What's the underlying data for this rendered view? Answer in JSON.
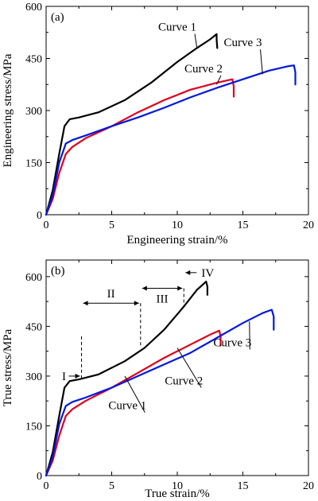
{
  "chart_data": [
    {
      "panel_label": "(a)",
      "type": "line",
      "xlabel": "Engineering strain/%",
      "ylabel": "Engineering stress/MPa",
      "xlim": [
        0,
        20
      ],
      "ylim": [
        0,
        600
      ],
      "xticks": [
        0,
        5,
        10,
        15,
        20
      ],
      "yticks": [
        0,
        150,
        300,
        450,
        600
      ],
      "series": [
        {
          "name": "Curve 1",
          "color": "#000000",
          "points": [
            [
              0,
              0
            ],
            [
              0.5,
              70
            ],
            [
              1.0,
              175
            ],
            [
              1.4,
              255
            ],
            [
              1.8,
              275
            ],
            [
              2.5,
              280
            ],
            [
              4,
              295
            ],
            [
              6,
              330
            ],
            [
              8,
              380
            ],
            [
              10,
              440
            ],
            [
              11.5,
              480
            ],
            [
              12.5,
              505
            ],
            [
              13.0,
              520
            ],
            [
              13.0,
              505
            ],
            [
              13.05,
              480
            ]
          ]
        },
        {
          "name": "Curve 2",
          "color": "#e0001a",
          "points": [
            [
              0,
              0
            ],
            [
              0.5,
              45
            ],
            [
              1.0,
              120
            ],
            [
              1.5,
              175
            ],
            [
              2.0,
              195
            ],
            [
              3,
              220
            ],
            [
              5,
              255
            ],
            [
              7,
              295
            ],
            [
              9,
              330
            ],
            [
              11,
              360
            ],
            [
              13,
              380
            ],
            [
              14.2,
              390
            ],
            [
              14.3,
              370
            ],
            [
              14.3,
              340
            ]
          ]
        },
        {
          "name": "Curve 3",
          "color": "#0018e0",
          "points": [
            [
              0,
              0
            ],
            [
              0.5,
              55
            ],
            [
              1.0,
              150
            ],
            [
              1.5,
              205
            ],
            [
              2.0,
              215
            ],
            [
              3,
              228
            ],
            [
              5,
              255
            ],
            [
              7,
              280
            ],
            [
              9,
              308
            ],
            [
              11,
              338
            ],
            [
              13,
              365
            ],
            [
              15,
              390
            ],
            [
              17,
              415
            ],
            [
              18.5,
              428
            ],
            [
              18.9,
              430
            ],
            [
              19.0,
              410
            ],
            [
              19.0,
              375
            ]
          ]
        }
      ],
      "annotations": [
        {
          "text": "Curve 1",
          "x": 10.0,
          "y": 530
        },
        {
          "text": "Curve 2",
          "x": 12.0,
          "y": 410
        },
        {
          "text": "Curve 3",
          "x": 15.0,
          "y": 485
        }
      ]
    },
    {
      "panel_label": "(b)",
      "type": "line",
      "xlabel": "True strain/%",
      "ylabel": "True stress/MPa",
      "xlim": [
        0,
        20
      ],
      "ylim": [
        0,
        650
      ],
      "xticks": [
        0,
        5,
        10,
        15,
        20
      ],
      "yticks": [
        0,
        150,
        300,
        450,
        600
      ],
      "series": [
        {
          "name": "Curve 1",
          "color": "#000000",
          "points": [
            [
              0,
              0
            ],
            [
              0.5,
              70
            ],
            [
              1.0,
              180
            ],
            [
              1.4,
              265
            ],
            [
              1.8,
              285
            ],
            [
              2.5,
              290
            ],
            [
              4,
              305
            ],
            [
              6,
              345
            ],
            [
              7.5,
              385
            ],
            [
              9,
              440
            ],
            [
              10.5,
              510
            ],
            [
              11.5,
              560
            ],
            [
              12.2,
              585
            ],
            [
              12.3,
              570
            ],
            [
              12.3,
              545
            ]
          ]
        },
        {
          "name": "Curve 2",
          "color": "#e0001a",
          "points": [
            [
              0,
              0
            ],
            [
              0.5,
              45
            ],
            [
              1.0,
              120
            ],
            [
              1.5,
              180
            ],
            [
              2.0,
              200
            ],
            [
              3,
              225
            ],
            [
              5,
              265
            ],
            [
              7,
              310
            ],
            [
              9,
              355
            ],
            [
              11,
              395
            ],
            [
              12.5,
              425
            ],
            [
              13.2,
              437
            ],
            [
              13.3,
              420
            ],
            [
              13.3,
              392
            ]
          ]
        },
        {
          "name": "Curve 3",
          "color": "#0018e0",
          "points": [
            [
              0,
              0
            ],
            [
              0.5,
              55
            ],
            [
              1.0,
              155
            ],
            [
              1.5,
              210
            ],
            [
              2.0,
              222
            ],
            [
              3,
              235
            ],
            [
              5,
              265
            ],
            [
              7,
              300
            ],
            [
              9,
              335
            ],
            [
              11,
              370
            ],
            [
              13,
              415
            ],
            [
              15,
              460
            ],
            [
              16.5,
              490
            ],
            [
              17.2,
              500
            ],
            [
              17.35,
              480
            ],
            [
              17.35,
              440
            ]
          ]
        }
      ],
      "annotations": [
        {
          "text": "Curve 1",
          "x": 6.2,
          "y": 200
        },
        {
          "text": "Curve 2",
          "x": 10.5,
          "y": 275
        },
        {
          "text": "Curve 3",
          "x": 14.2,
          "y": 390
        }
      ],
      "stage_labels": [
        "I",
        "II",
        "III",
        "IV"
      ],
      "stage_boundaries": [
        2.7,
        7.2,
        10.5
      ]
    }
  ]
}
